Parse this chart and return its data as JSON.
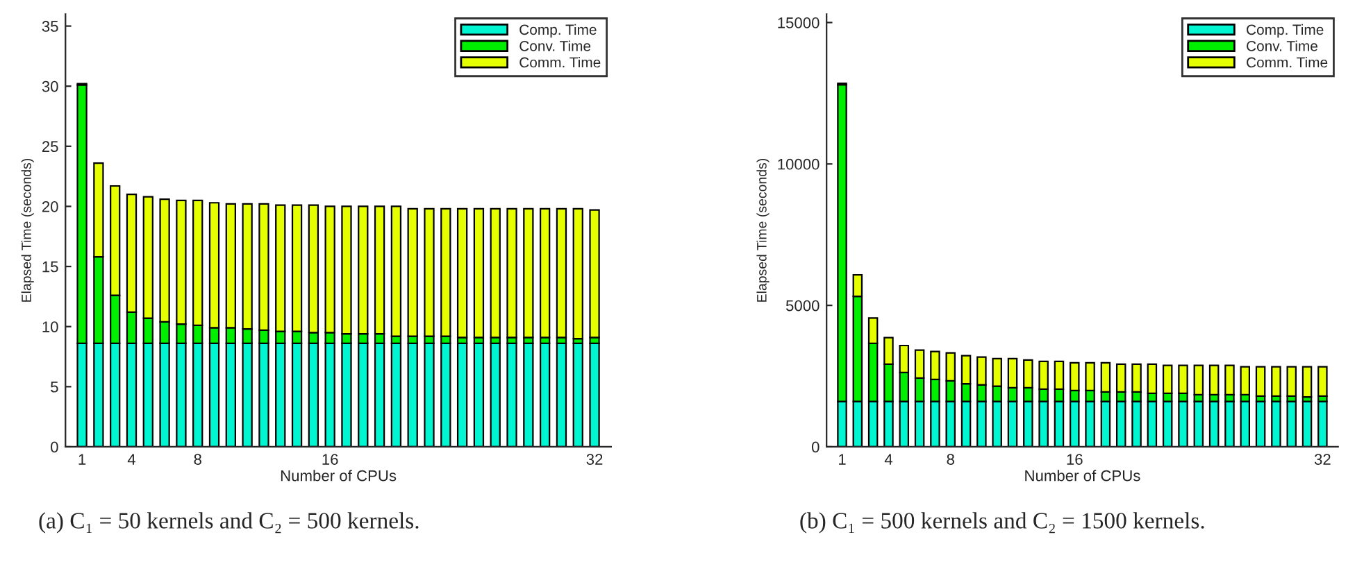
{
  "chart_data": [
    {
      "type": "bar",
      "stacked": true,
      "x": [
        1,
        2,
        3,
        4,
        5,
        6,
        7,
        8,
        9,
        10,
        11,
        12,
        13,
        14,
        15,
        16,
        17,
        18,
        19,
        20,
        21,
        22,
        23,
        24,
        25,
        26,
        27,
        28,
        29,
        30,
        31,
        32
      ],
      "xlabel": "Number of CPUs",
      "ylabel": "Elapsed Time (seconds)",
      "xlim": [
        0,
        33
      ],
      "xticks": [
        1,
        4,
        8,
        16,
        32
      ],
      "ylim": [
        0,
        36
      ],
      "yticks": [
        0,
        5,
        10,
        15,
        20,
        25,
        30,
        35
      ],
      "legend": "top right",
      "grid": false,
      "annotations": [
        "(a) C₁ = 50 kernels and C₂ = 500 kernels."
      ],
      "series": [
        {
          "name": "Comp. Time",
          "color": "#00f5d0",
          "values": [
            8.6,
            8.6,
            8.6,
            8.6,
            8.6,
            8.6,
            8.6,
            8.6,
            8.6,
            8.6,
            8.6,
            8.6,
            8.6,
            8.6,
            8.6,
            8.6,
            8.6,
            8.6,
            8.6,
            8.6,
            8.6,
            8.6,
            8.6,
            8.6,
            8.6,
            8.6,
            8.6,
            8.6,
            8.6,
            8.6,
            8.6,
            8.6
          ]
        },
        {
          "name": "Conv. Time",
          "color": "#00ee00",
          "values": [
            21.5,
            7.2,
            4.0,
            2.6,
            2.1,
            1.8,
            1.6,
            1.5,
            1.3,
            1.3,
            1.2,
            1.1,
            1.0,
            1.0,
            0.9,
            0.9,
            0.8,
            0.8,
            0.8,
            0.6,
            0.6,
            0.6,
            0.6,
            0.5,
            0.5,
            0.5,
            0.5,
            0.5,
            0.5,
            0.5,
            0.4,
            0.5
          ]
        },
        {
          "name": "Comm. Time",
          "color": "#e6ff00",
          "values": [
            0.1,
            7.8,
            9.1,
            9.8,
            10.1,
            10.2,
            10.3,
            10.4,
            10.4,
            10.3,
            10.4,
            10.5,
            10.5,
            10.5,
            10.6,
            10.5,
            10.6,
            10.6,
            10.6,
            10.8,
            10.6,
            10.6,
            10.6,
            10.7,
            10.7,
            10.7,
            10.7,
            10.7,
            10.7,
            10.7,
            10.8,
            10.6
          ]
        }
      ]
    },
    {
      "type": "bar",
      "stacked": true,
      "x": [
        1,
        2,
        3,
        4,
        5,
        6,
        7,
        8,
        9,
        10,
        11,
        12,
        13,
        14,
        15,
        16,
        17,
        18,
        19,
        20,
        21,
        22,
        23,
        24,
        25,
        26,
        27,
        28,
        29,
        30,
        31,
        32
      ],
      "xlabel": "Number of CPUs",
      "ylabel": "Elapsed Time (seconds)",
      "xlim": [
        0,
        33
      ],
      "xticks": [
        1,
        4,
        8,
        16,
        32
      ],
      "ylim": [
        0,
        15300
      ],
      "yticks": [
        0,
        5000,
        10000,
        15000
      ],
      "legend": "top right",
      "grid": false,
      "annotations": [
        "(b) C₁ = 500 kernels and C₂ = 1500 kernels."
      ],
      "series": [
        {
          "name": "Comp. Time",
          "color": "#00f5d0",
          "values": [
            1600,
            1600,
            1600,
            1600,
            1600,
            1600,
            1600,
            1600,
            1600,
            1600,
            1600,
            1600,
            1600,
            1600,
            1600,
            1600,
            1600,
            1600,
            1600,
            1600,
            1600,
            1600,
            1600,
            1600,
            1600,
            1600,
            1600,
            1600,
            1600,
            1600,
            1600,
            1600
          ]
        },
        {
          "name": "Conv. Time",
          "color": "#00ee00",
          "values": [
            11200,
            3720,
            2060,
            1320,
            1030,
            830,
            780,
            730,
            630,
            590,
            540,
            490,
            490,
            440,
            440,
            390,
            390,
            340,
            340,
            340,
            290,
            290,
            290,
            240,
            240,
            240,
            240,
            190,
            190,
            190,
            160,
            190
          ]
        },
        {
          "name": "Comm. Time",
          "color": "#e6ff00",
          "values": [
            50,
            760,
            890,
            940,
            950,
            990,
            990,
            990,
            990,
            980,
            980,
            1030,
            980,
            980,
            980,
            980,
            980,
            1030,
            980,
            980,
            1030,
            990,
            990,
            1040,
            1040,
            1040,
            990,
            1040,
            1040,
            1040,
            1070,
            1040
          ]
        }
      ]
    }
  ]
}
